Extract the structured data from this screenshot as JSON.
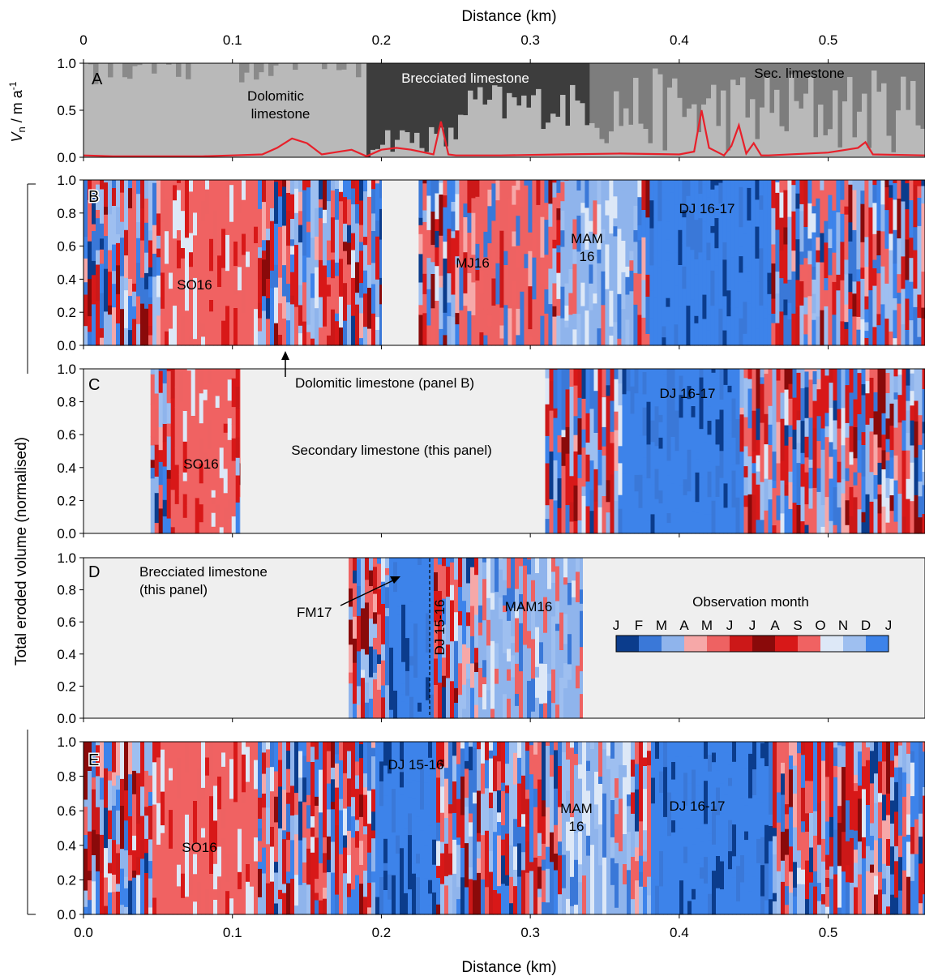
{
  "figure": {
    "top_axis_label": "Distance (km)",
    "bottom_axis_label": "Distance (km)",
    "y_label_top_panel": "V",
    "y_label_top_sub": "n",
    "y_label_top_unit": " / m a",
    "y_label_top_sup": "-1",
    "y_label_shared": "Total eroded volume (normalised)"
  },
  "colors": {
    "month_colors": [
      "#0b3c8c",
      "#3a78d8",
      "#8fb4ec",
      "#f6a8a8",
      "#ee6262",
      "#cc1818",
      "#8a0a0a",
      "#d81818",
      "#f06262",
      "#dde8f7",
      "#9ebff0",
      "#3d83ea"
    ],
    "panel_background": "#efefef",
    "velocity_line": "#e8202a",
    "dolomitic_grey": "#b9b9b9",
    "brecciated_grey": "#3d3d3d",
    "secondary_grey": "#7d7d7d"
  },
  "chart_data": [
    {
      "panel": "A",
      "type": "area",
      "xlim": [
        0,
        0.565
      ],
      "ylim": [
        0,
        1.0
      ],
      "x_ticks": [
        "0",
        "0.1",
        "0.2",
        "0.3",
        "0.4",
        "0.5"
      ],
      "y_ticks": [
        "0.0",
        "0.5",
        "1.0"
      ],
      "annotations": [
        "Dolomitic",
        "limestone",
        "Brecciated limestone",
        "Sec. limestone"
      ],
      "lithology_zones": [
        {
          "name": "Dolomitic limestone",
          "x": [
            0,
            0.19
          ]
        },
        {
          "name": "Brecciated limestone",
          "x": [
            0.19,
            0.34
          ]
        },
        {
          "name": "Sec. limestone",
          "x": [
            0.34,
            0.565
          ]
        }
      ],
      "series": [
        {
          "type": "line",
          "x": [
            0,
            0.02,
            0.04,
            0.06,
            0.08,
            0.1,
            0.12,
            0.13,
            0.14,
            0.15,
            0.16,
            0.18,
            0.19,
            0.2,
            0.21,
            0.22,
            0.235,
            0.24,
            0.245,
            0.25,
            0.28,
            0.32,
            0.36,
            0.4,
            0.41,
            0.415,
            0.42,
            0.43,
            0.435,
            0.44,
            0.445,
            0.45,
            0.455,
            0.46,
            0.5,
            0.52,
            0.525,
            0.53,
            0.565
          ],
          "y": [
            0.02,
            0.01,
            0.01,
            0.01,
            0.01,
            0.02,
            0.03,
            0.1,
            0.2,
            0.15,
            0.03,
            0.08,
            0.01,
            0.08,
            0.1,
            0.08,
            0.03,
            0.38,
            0.03,
            0.02,
            0.02,
            0.03,
            0.04,
            0.03,
            0.06,
            0.5,
            0.1,
            0.02,
            0.12,
            0.34,
            0.04,
            0.15,
            0.02,
            0.02,
            0.05,
            0.1,
            0.16,
            0.03,
            0.02
          ]
        }
      ]
    },
    {
      "panel": "B",
      "type": "heatmap",
      "xlim": [
        0,
        0.565
      ],
      "ylim": [
        0,
        1.0
      ],
      "y_ticks": [
        "0.0",
        "0.2",
        "0.4",
        "0.6",
        "0.8",
        "1.0"
      ],
      "annotations": [
        "SO16",
        "MJ16",
        "MAM",
        "16",
        "DJ 16-17",
        "Dolomitic limestone (panel B)"
      ],
      "data_ranges": [
        [
          0,
          0.2
        ],
        [
          0.225,
          0.565
        ]
      ],
      "dominant_periods": [
        {
          "x": [
            0.05,
            0.115
          ],
          "month": "SO"
        },
        {
          "x": [
            0.25,
            0.31
          ],
          "month": "MJ"
        },
        {
          "x": [
            0.32,
            0.37
          ],
          "month": "MAM"
        },
        {
          "x": [
            0.38,
            0.46
          ],
          "month": "DJ"
        }
      ]
    },
    {
      "panel": "C",
      "type": "heatmap",
      "xlim": [
        0,
        0.565
      ],
      "ylim": [
        0,
        1.0
      ],
      "y_ticks": [
        "0.0",
        "0.2",
        "0.4",
        "0.6",
        "0.8",
        "1.0"
      ],
      "annotations": [
        "SO16",
        "Secondary limestone (this panel)",
        "DJ 16-17"
      ],
      "data_ranges": [
        [
          0.045,
          0.105
        ],
        [
          0.31,
          0.565
        ]
      ],
      "dominant_periods": [
        {
          "x": [
            0.06,
            0.1
          ],
          "month": "SO"
        },
        {
          "x": [
            0.36,
            0.44
          ],
          "month": "DJ"
        }
      ]
    },
    {
      "panel": "D",
      "type": "heatmap",
      "xlim": [
        0,
        0.565
      ],
      "ylim": [
        0,
        1.0
      ],
      "y_ticks": [
        "0.0",
        "0.2",
        "0.4",
        "0.6",
        "0.8",
        "1.0"
      ],
      "annotations": [
        "Brecciated limestone",
        "(this panel)",
        "FM17",
        "DJ 15-16",
        "MAM16",
        "Observation month"
      ],
      "data_ranges": [
        [
          0.178,
          0.335
        ]
      ],
      "dominant_periods": [
        {
          "x": [
            0.205,
            0.233
          ],
          "month": "DJ"
        },
        {
          "x": [
            0.265,
            0.335
          ],
          "month": "MAM"
        }
      ],
      "legend": {
        "title": "Observation month",
        "labels": [
          "J",
          "F",
          "M",
          "A",
          "M",
          "J",
          "J",
          "A",
          "S",
          "O",
          "N",
          "D",
          "J"
        ]
      }
    },
    {
      "panel": "E",
      "type": "heatmap",
      "xlim": [
        0,
        0.565
      ],
      "ylim": [
        0,
        1.0
      ],
      "x_ticks": [
        "0.0",
        "0.1",
        "0.2",
        "0.3",
        "0.4",
        "0.5"
      ],
      "y_ticks": [
        "0.0",
        "0.2",
        "0.4",
        "0.6",
        "0.8",
        "1.0"
      ],
      "annotations": [
        "SO16",
        "DJ 15-16",
        "MAM",
        "16",
        "DJ 16-17"
      ],
      "data_ranges": [
        [
          0,
          0.565
        ]
      ],
      "dominant_periods": [
        {
          "x": [
            0.045,
            0.115
          ],
          "month": "SO"
        },
        {
          "x": [
            0.195,
            0.235
          ],
          "month": "DJ"
        },
        {
          "x": [
            0.32,
            0.365
          ],
          "month": "MAM"
        },
        {
          "x": [
            0.38,
            0.46
          ],
          "month": "DJ"
        }
      ]
    }
  ]
}
